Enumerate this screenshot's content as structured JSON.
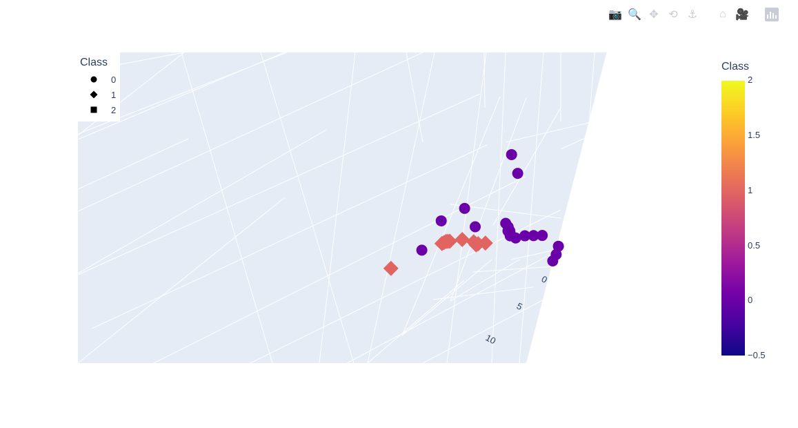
{
  "toolbar": {
    "buttons": [
      {
        "name": "download-plot-button",
        "icon": "camera-icon",
        "glyph": "📷"
      },
      {
        "name": "zoom-button",
        "icon": "zoom-icon",
        "glyph": "🔍"
      },
      {
        "name": "pan-button",
        "icon": "pan-icon",
        "glyph": "✥"
      },
      {
        "name": "orbital-rotation-button",
        "icon": "orbit-icon",
        "glyph": "⟲"
      },
      {
        "name": "turntable-rotation-button",
        "icon": "turntable-icon",
        "glyph": "⚓"
      },
      {
        "name": "reset-camera-button",
        "icon": "home-icon",
        "glyph": "⌂"
      },
      {
        "name": "save-camera-button",
        "icon": "video-camera-icon",
        "glyph": "🎥"
      }
    ]
  },
  "legend": {
    "title": "Class",
    "items": [
      {
        "label": "0",
        "symbol": "circle"
      },
      {
        "label": "1",
        "symbol": "diamond"
      },
      {
        "label": "2",
        "symbol": "square"
      }
    ]
  },
  "colorbar": {
    "title": "Class",
    "ticks": [
      "2",
      "1.5",
      "1",
      "0.5",
      "0",
      "−0.5"
    ],
    "range": [
      -0.5,
      2
    ],
    "colorscale": [
      "#0d0887",
      "#46039f",
      "#7201a8",
      "#9c179e",
      "#bd3786",
      "#d8576b",
      "#ed7953",
      "#fb9f3a",
      "#fdca26",
      "#f0f921"
    ]
  },
  "axis_ticks": [
    "0",
    "5",
    "10"
  ],
  "chart_data": {
    "type": "scatter",
    "subtype": "scatter3d",
    "color_by": "Class",
    "scene_background": "#e5ecf6",
    "series": [
      {
        "name": "0",
        "symbol": "circle",
        "color": "#6a00a8",
        "points": [
          {
            "x": 0.5,
            "y": 0.3,
            "z": 6.5
          },
          {
            "x": 1.0,
            "y": 0.4,
            "z": 5.0
          },
          {
            "x": -0.8,
            "y": 0.2,
            "z": 0.2
          },
          {
            "x": 0.0,
            "y": 0.5,
            "z": -1.0
          },
          {
            "x": 1.2,
            "y": 0.6,
            "z": 0.2
          },
          {
            "x": 1.4,
            "y": 0.7,
            "z": 0.0
          },
          {
            "x": 1.5,
            "y": 0.8,
            "z": -0.3
          },
          {
            "x": 1.6,
            "y": 0.9,
            "z": -0.2
          },
          {
            "x": 1.7,
            "y": 1.0,
            "z": -0.1
          },
          {
            "x": 1.8,
            "y": 1.1,
            "z": -0.2
          },
          {
            "x": 1.9,
            "y": 1.2,
            "z": -0.4
          },
          {
            "x": 2.0,
            "y": 1.0,
            "z": -0.6
          },
          {
            "x": 2.2,
            "y": 0.8,
            "z": -0.3
          },
          {
            "x": 2.4,
            "y": 0.6,
            "z": -0.2
          },
          {
            "x": 2.6,
            "y": 0.4,
            "z": -0.1
          },
          {
            "x": 3.4,
            "y": 0.5,
            "z": -0.6
          },
          {
            "x": 3.6,
            "y": 0.8,
            "z": -1.2
          },
          {
            "x": 3.8,
            "y": 1.2,
            "z": -1.6
          },
          {
            "x": -1.5,
            "y": 0.3,
            "z": -1.5
          },
          {
            "x": -2.0,
            "y": 0.2,
            "z": -4.8
          }
        ]
      },
      {
        "name": "1",
        "symbol": "diamond",
        "color": "#e16462",
        "points": [
          {
            "x": 2.0,
            "y": 5.2,
            "z": 0.0
          },
          {
            "x": 2.2,
            "y": 5.4,
            "z": 0.3
          },
          {
            "x": 2.4,
            "y": 5.6,
            "z": 0.6
          },
          {
            "x": 2.6,
            "y": 5.8,
            "z": 0.8
          },
          {
            "x": 2.8,
            "y": 6.0,
            "z": 1.0
          },
          {
            "x": 3.0,
            "y": 5.6,
            "z": 1.2
          },
          {
            "x": 3.2,
            "y": 5.2,
            "z": 1.0
          },
          {
            "x": 3.4,
            "y": 4.8,
            "z": 0.9
          },
          {
            "x": 3.0,
            "y": 4.6,
            "z": 0.5
          },
          {
            "x": 2.8,
            "y": 4.4,
            "z": 0.2
          },
          {
            "x": 3.6,
            "y": 10.2,
            "z": 0.0
          }
        ]
      }
    ],
    "axes": {
      "x": {
        "ticks": [
          "0",
          "5",
          "10"
        ]
      },
      "grid": true
    }
  }
}
